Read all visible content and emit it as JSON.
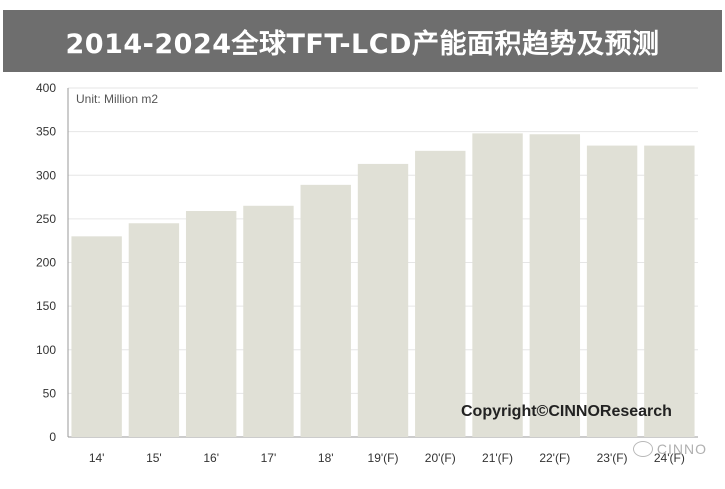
{
  "chart_data": {
    "type": "bar",
    "title": "2014-2024全球TFT-LCD产能面积趋势及预测",
    "unit_label": "Unit: Million m2",
    "categories": [
      "14'",
      "15'",
      "16'",
      "17'",
      "18'",
      "19'(F)",
      "20'(F)",
      "21'(F)",
      "22'(F)",
      "23'(F)",
      "24'(F)"
    ],
    "values": [
      230,
      245,
      259,
      265,
      289,
      313,
      328,
      348,
      347,
      334,
      334
    ],
    "ylim": [
      0,
      400
    ],
    "yticks": [
      0,
      50,
      100,
      150,
      200,
      250,
      300,
      350,
      400
    ],
    "grid": true,
    "bar_color": "#e0e0d6"
  },
  "copyright": "Copyright©CINNOResearch",
  "watermark": "CINNO"
}
